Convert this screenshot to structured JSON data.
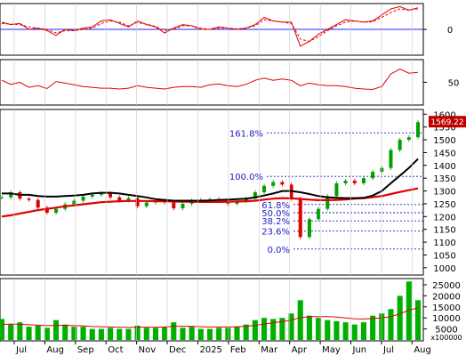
{
  "chart_data": {
    "type": "line",
    "months": [
      "Jul",
      "Aug",
      "Sep",
      "Oct",
      "Nov",
      "Dec",
      "2025",
      "Feb",
      "Mar",
      "Apr",
      "May",
      "Jun",
      "Jul",
      "Aug"
    ],
    "panels": {
      "macd": {
        "ylim": [
          -1,
          1
        ],
        "zero_label": "0",
        "colors": {
          "line": "#e00000",
          "signal": "#e00000",
          "zero": "#2020ff"
        },
        "series": [
          {
            "values": [
              0.3,
              0.2,
              0.25,
              0.0,
              0.05,
              -0.05,
              -0.25,
              0.0,
              -0.05,
              0.05,
              0.1,
              0.35,
              0.4,
              0.25,
              0.1,
              0.35,
              0.2,
              0.1,
              -0.15,
              0.05,
              0.2,
              0.15,
              0.0,
              0.0,
              0.1,
              0.05,
              0.0,
              0.05,
              0.2,
              0.5,
              0.35,
              0.3,
              0.3,
              -0.7,
              -0.5,
              -0.2,
              0.0,
              0.2,
              0.4,
              0.35,
              0.3,
              0.35,
              0.6,
              0.85,
              0.95,
              0.8,
              0.9
            ]
          },
          {
            "values": [
              0.25,
              0.22,
              0.2,
              0.1,
              0.05,
              0.0,
              -0.15,
              -0.05,
              -0.05,
              0.0,
              0.05,
              0.25,
              0.35,
              0.3,
              0.15,
              0.28,
              0.22,
              0.12,
              -0.05,
              0.0,
              0.15,
              0.15,
              0.05,
              0.0,
              0.05,
              0.05,
              0.02,
              0.05,
              0.15,
              0.4,
              0.35,
              0.3,
              0.25,
              -0.4,
              -0.5,
              -0.3,
              -0.05,
              0.15,
              0.3,
              0.35,
              0.3,
              0.32,
              0.5,
              0.7,
              0.85,
              0.8,
              0.85
            ]
          }
        ]
      },
      "rsi": {
        "ylim": [
          0,
          100
        ],
        "ticks": [
          {
            "value": 50,
            "label": "50"
          }
        ],
        "color": "#e00000",
        "values": [
          55,
          45,
          50,
          38,
          42,
          35,
          52,
          48,
          44,
          40,
          38,
          36,
          36,
          34,
          36,
          42,
          38,
          36,
          34,
          38,
          40,
          40,
          38,
          44,
          46,
          42,
          40,
          45,
          55,
          60,
          55,
          58,
          55,
          42,
          48,
          44,
          42,
          42,
          40,
          36,
          34,
          33,
          40,
          70,
          82,
          72,
          74
        ]
      },
      "price": {
        "ylim": [
          975,
          1615
        ],
        "ticks": [
          1000,
          1050,
          1100,
          1150,
          1200,
          1250,
          1300,
          1350,
          1400,
          1450,
          1500,
          1550,
          1600
        ],
        "last_value_label": "1569.22",
        "colors": {
          "up": "#00a000",
          "down": "#e00000",
          "ma_black": "#000000",
          "ma_red": "#e00000",
          "fib": "#2020c0",
          "label_bg": "#c00000"
        },
        "close": [
          1275,
          1295,
          1270,
          1265,
          1235,
          1215,
          1230,
          1248,
          1262,
          1278,
          1285,
          1290,
          1275,
          1263,
          1272,
          1240,
          1255,
          1260,
          1255,
          1232,
          1250,
          1262,
          1265,
          1268,
          1262,
          1250,
          1260,
          1270,
          1295,
          1320,
          1335,
          1325,
          1270,
          1120,
          1190,
          1230,
          1280,
          1330,
          1340,
          1330,
          1350,
          1375,
          1390,
          1460,
          1500,
          1510,
          1569
        ],
        "ma_black": [
          1290,
          1290,
          1285,
          1285,
          1280,
          1278,
          1278,
          1280,
          1282,
          1285,
          1290,
          1293,
          1293,
          1290,
          1285,
          1280,
          1275,
          1268,
          1265,
          1262,
          1262,
          1262,
          1262,
          1263,
          1265,
          1266,
          1268,
          1270,
          1275,
          1282,
          1290,
          1300,
          1300,
          1295,
          1288,
          1280,
          1275,
          1273,
          1272,
          1272,
          1273,
          1282,
          1300,
          1330,
          1360,
          1390,
          1425
        ],
        "ma_red": [
          1200,
          1205,
          1212,
          1218,
          1225,
          1230,
          1235,
          1240,
          1244,
          1248,
          1252,
          1256,
          1258,
          1260,
          1261,
          1261,
          1261,
          1260,
          1260,
          1259,
          1258,
          1258,
          1257,
          1257,
          1257,
          1258,
          1259,
          1260,
          1262,
          1266,
          1270,
          1272,
          1271,
          1269,
          1266,
          1264,
          1264,
          1265,
          1267,
          1270,
          1272,
          1276,
          1280,
          1288,
          1296,
          1303,
          1310
        ],
        "fib_levels": [
          {
            "label": "161.8%",
            "value": 1527,
            "label_side": "left"
          },
          {
            "label": "100.0%",
            "value": 1357,
            "label_side": "left"
          },
          {
            "label": "61.8%",
            "value": 1247,
            "label_side": "right"
          },
          {
            "label": "50.0%",
            "value": 1215,
            "label_side": "right"
          },
          {
            "label": "38.2%",
            "value": 1183,
            "label_side": "right"
          },
          {
            "label": "23.6%",
            "value": 1143,
            "label_side": "right"
          },
          {
            "label": "0.0%",
            "value": 1073,
            "label_side": "right"
          }
        ]
      },
      "volume": {
        "ylim": [
          0,
          27000
        ],
        "ticks": [
          {
            "value": 25000,
            "label": "25000"
          },
          {
            "value": 20000,
            "label": "20000"
          },
          {
            "value": 15000,
            "label": "15000"
          },
          {
            "value": 10000,
            "label": "10000"
          },
          {
            "value": 5000,
            "label": "5000"
          }
        ],
        "multiplier_label": "x100000",
        "colors": {
          "bar": "#00b000",
          "ma": "#e00000"
        },
        "values": [
          9500,
          7000,
          8000,
          6000,
          6500,
          5500,
          9000,
          7000,
          6000,
          6000,
          5000,
          5000,
          5500,
          5000,
          5000,
          6500,
          5500,
          5500,
          6000,
          8000,
          5500,
          6000,
          5000,
          5000,
          5500,
          5500,
          6000,
          7000,
          9000,
          10000,
          9500,
          10000,
          12000,
          18000,
          11000,
          10000,
          9000,
          8500,
          8000,
          7000,
          8000,
          11000,
          12000,
          14000,
          20000,
          26500,
          18000
        ],
        "ma": [
          7000,
          7200,
          7100,
          6900,
          6700,
          6500,
          6600,
          6600,
          6500,
          6400,
          6100,
          6000,
          5900,
          5800,
          5700,
          5800,
          5800,
          5800,
          5900,
          6200,
          6200,
          6200,
          6000,
          5900,
          5900,
          5900,
          6000,
          6200,
          6600,
          7200,
          7800,
          8400,
          9000,
          10200,
          10500,
          10600,
          10600,
          10400,
          10000,
          9600,
          9500,
          9700,
          10000,
          10600,
          11800,
          13500,
          14500
        ]
      }
    }
  }
}
